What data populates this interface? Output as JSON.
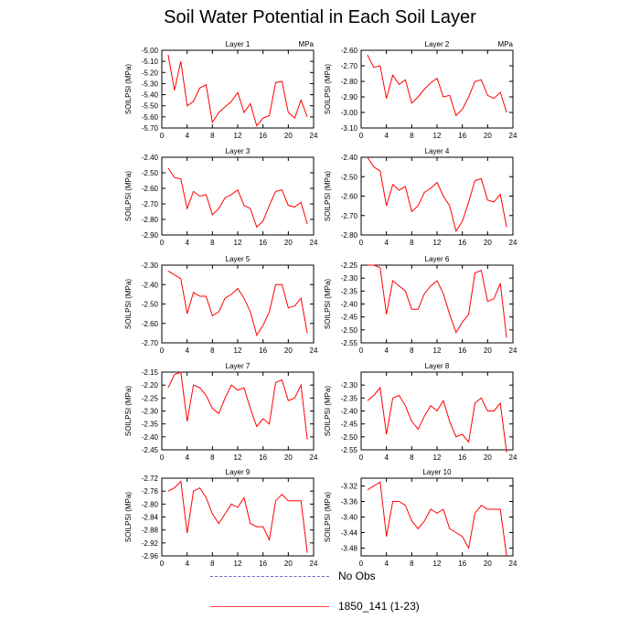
{
  "title": "Soil Water Potential in Each Soil Layer",
  "colors": {
    "model": "#ff0000",
    "obs": "#6666cc"
  },
  "legend": [
    {
      "label": "No Obs",
      "style": "dashed",
      "color": "#6666cc"
    },
    {
      "label": "1850_141 (1-23)",
      "style": "solid",
      "color": "#ff0000"
    }
  ],
  "chart_data": [
    {
      "type": "line",
      "title": "Layer 1",
      "unit_label": "MPa",
      "ylabel": "SOILPSI  (MPa)",
      "x": [
        1,
        2,
        3,
        4,
        5,
        6,
        7,
        8,
        9,
        10,
        11,
        12,
        13,
        14,
        15,
        16,
        17,
        18,
        19,
        20,
        21,
        22,
        23
      ],
      "xlim": [
        0,
        24
      ],
      "xticks": [
        0,
        4,
        8,
        12,
        16,
        20,
        24
      ],
      "ylim": [
        -5.7,
        -5.0
      ],
      "yticks": [
        "-5.00",
        "-5.10",
        "-5.20",
        "-5.30",
        "-5.40",
        "-5.50",
        "-5.60",
        "-5.70"
      ],
      "series": [
        {
          "values": [
            -5.04,
            -5.36,
            -5.1,
            -5.5,
            -5.46,
            -5.34,
            -5.31,
            -5.65,
            -5.56,
            -5.51,
            -5.46,
            -5.38,
            -5.56,
            -5.48,
            -5.68,
            -5.61,
            -5.59,
            -5.29,
            -5.28,
            -5.56,
            -5.61,
            -5.45,
            -5.6
          ]
        }
      ]
    },
    {
      "type": "line",
      "title": "Layer 2",
      "unit_label": "MPa",
      "ylabel": "SOILPSI  (MPa)",
      "x": [
        1,
        2,
        3,
        4,
        5,
        6,
        7,
        8,
        9,
        10,
        11,
        12,
        13,
        14,
        15,
        16,
        17,
        18,
        19,
        20,
        21,
        22,
        23
      ],
      "xlim": [
        0,
        24
      ],
      "xticks": [
        0,
        4,
        8,
        12,
        16,
        20,
        24
      ],
      "ylim": [
        -3.1,
        -2.6
      ],
      "yticks": [
        "-2.60",
        "-2.70",
        "-2.80",
        "-2.90",
        "-3.00",
        "-3.10"
      ],
      "series": [
        {
          "values": [
            -2.63,
            -2.71,
            -2.7,
            -2.91,
            -2.76,
            -2.82,
            -2.79,
            -2.94,
            -2.9,
            -2.85,
            -2.81,
            -2.78,
            -2.9,
            -2.89,
            -3.02,
            -2.98,
            -2.9,
            -2.8,
            -2.79,
            -2.89,
            -2.91,
            -2.87,
            -3.0
          ]
        }
      ]
    },
    {
      "type": "line",
      "title": "Layer 3",
      "unit_label": "",
      "ylabel": "SOILPSI  (MPa)",
      "x": [
        1,
        2,
        3,
        4,
        5,
        6,
        7,
        8,
        9,
        10,
        11,
        12,
        13,
        14,
        15,
        16,
        17,
        18,
        19,
        20,
        21,
        22,
        23
      ],
      "xlim": [
        0,
        24
      ],
      "xticks": [
        0,
        4,
        8,
        12,
        16,
        20,
        24
      ],
      "ylim": [
        -2.9,
        -2.4
      ],
      "yticks": [
        "-2.40",
        "-2.50",
        "-2.60",
        "-2.70",
        "-2.80",
        "-2.90"
      ],
      "series": [
        {
          "values": [
            -2.47,
            -2.53,
            -2.54,
            -2.73,
            -2.62,
            -2.65,
            -2.64,
            -2.77,
            -2.73,
            -2.66,
            -2.64,
            -2.61,
            -2.71,
            -2.73,
            -2.85,
            -2.81,
            -2.71,
            -2.62,
            -2.61,
            -2.71,
            -2.72,
            -2.69,
            -2.83
          ]
        }
      ]
    },
    {
      "type": "line",
      "title": "Layer 4",
      "unit_label": "",
      "ylabel": "SOILPSI  (MPa)",
      "x": [
        1,
        2,
        3,
        4,
        5,
        6,
        7,
        8,
        9,
        10,
        11,
        12,
        13,
        14,
        15,
        16,
        17,
        18,
        19,
        20,
        21,
        22,
        23
      ],
      "xlim": [
        0,
        24
      ],
      "xticks": [
        0,
        4,
        8,
        12,
        16,
        20,
        24
      ],
      "ylim": [
        -2.8,
        -2.4
      ],
      "yticks": [
        "-2.40",
        "-2.50",
        "-2.60",
        "-2.70",
        "-2.80"
      ],
      "series": [
        {
          "values": [
            -2.4,
            -2.45,
            -2.47,
            -2.65,
            -2.54,
            -2.57,
            -2.55,
            -2.68,
            -2.65,
            -2.58,
            -2.56,
            -2.53,
            -2.6,
            -2.65,
            -2.78,
            -2.73,
            -2.63,
            -2.52,
            -2.51,
            -2.62,
            -2.63,
            -2.59,
            -2.76
          ]
        }
      ]
    },
    {
      "type": "line",
      "title": "Layer 5",
      "unit_label": "",
      "ylabel": "SOILPSI  (MPa)",
      "x": [
        1,
        2,
        3,
        4,
        5,
        6,
        7,
        8,
        9,
        10,
        11,
        12,
        13,
        14,
        15,
        16,
        17,
        18,
        19,
        20,
        21,
        22,
        23
      ],
      "xlim": [
        0,
        24
      ],
      "xticks": [
        0,
        4,
        8,
        12,
        16,
        20,
        24
      ],
      "ylim": [
        -2.7,
        -2.3
      ],
      "yticks": [
        "-2.30",
        "-2.40",
        "-2.50",
        "-2.60",
        "-2.70"
      ],
      "series": [
        {
          "values": [
            -2.33,
            -2.35,
            -2.37,
            -2.55,
            -2.44,
            -2.46,
            -2.46,
            -2.56,
            -2.54,
            -2.47,
            -2.45,
            -2.42,
            -2.47,
            -2.54,
            -2.66,
            -2.61,
            -2.54,
            -2.4,
            -2.4,
            -2.52,
            -2.51,
            -2.47,
            -2.65
          ]
        }
      ]
    },
    {
      "type": "line",
      "title": "Layer 6",
      "unit_label": "",
      "ylabel": "SOILPSI  (MPa)",
      "x": [
        1,
        2,
        3,
        4,
        5,
        6,
        7,
        8,
        9,
        10,
        11,
        12,
        13,
        14,
        15,
        16,
        17,
        18,
        19,
        20,
        21,
        22,
        23
      ],
      "xlim": [
        0,
        24
      ],
      "xticks": [
        0,
        4,
        8,
        12,
        16,
        20,
        24
      ],
      "ylim": [
        -2.55,
        -2.25
      ],
      "yticks": [
        "-2.25",
        "-2.30",
        "-2.35",
        "-2.40",
        "-2.45",
        "-2.50",
        "-2.55"
      ],
      "series": [
        {
          "values": [
            -2.25,
            -2.25,
            -2.26,
            -2.44,
            -2.31,
            -2.33,
            -2.35,
            -2.42,
            -2.42,
            -2.36,
            -2.33,
            -2.31,
            -2.36,
            -2.44,
            -2.51,
            -2.47,
            -2.44,
            -2.28,
            -2.27,
            -2.39,
            -2.38,
            -2.32,
            -2.53
          ]
        }
      ]
    },
    {
      "type": "line",
      "title": "Layer 7",
      "unit_label": "",
      "ylabel": "SOILPSI  (MPa)",
      "x": [
        1,
        2,
        3,
        4,
        5,
        6,
        7,
        8,
        9,
        10,
        11,
        12,
        13,
        14,
        15,
        16,
        17,
        18,
        19,
        20,
        21,
        22,
        23
      ],
      "xlim": [
        0,
        24
      ],
      "xticks": [
        0,
        4,
        8,
        12,
        16,
        20,
        24
      ],
      "ylim": [
        -2.45,
        -2.15
      ],
      "yticks": [
        "-2.15",
        "-2.20",
        "-2.25",
        "-2.30",
        "-2.35",
        "-2.40",
        "-2.45"
      ],
      "series": [
        {
          "values": [
            -2.21,
            -2.16,
            -2.15,
            -2.34,
            -2.2,
            -2.21,
            -2.24,
            -2.29,
            -2.31,
            -2.25,
            -2.2,
            -2.22,
            -2.21,
            -2.29,
            -2.36,
            -2.33,
            -2.35,
            -2.19,
            -2.18,
            -2.26,
            -2.25,
            -2.2,
            -2.41
          ]
        }
      ]
    },
    {
      "type": "line",
      "title": "Layer 8",
      "unit_label": "",
      "ylabel": "SOILPSI  (MPa)",
      "x": [
        1,
        2,
        3,
        4,
        5,
        6,
        7,
        8,
        9,
        10,
        11,
        12,
        13,
        14,
        15,
        16,
        17,
        18,
        19,
        20,
        21,
        22,
        23
      ],
      "xlim": [
        0,
        24
      ],
      "xticks": [
        0,
        4,
        8,
        12,
        16,
        20,
        24
      ],
      "ylim": [
        -2.55,
        -2.25
      ],
      "yticks": [
        "-2.30",
        "-2.35",
        "-2.40",
        "-2.45",
        "-2.50",
        "-2.55"
      ],
      "series": [
        {
          "values": [
            -2.36,
            -2.34,
            -2.31,
            -2.49,
            -2.35,
            -2.34,
            -2.38,
            -2.44,
            -2.47,
            -2.42,
            -2.38,
            -2.4,
            -2.36,
            -2.44,
            -2.5,
            -2.49,
            -2.52,
            -2.37,
            -2.35,
            -2.4,
            -2.4,
            -2.37,
            -2.56
          ]
        }
      ]
    },
    {
      "type": "line",
      "title": "Layer 9",
      "unit_label": "",
      "ylabel": "SOILPSI  (MPa)",
      "x": [
        1,
        2,
        3,
        4,
        5,
        6,
        7,
        8,
        9,
        10,
        11,
        12,
        13,
        14,
        15,
        16,
        17,
        18,
        19,
        20,
        21,
        22,
        23
      ],
      "xlim": [
        0,
        24
      ],
      "xticks": [
        0,
        4,
        8,
        12,
        16,
        20,
        24
      ],
      "ylim": [
        -2.96,
        -2.72
      ],
      "yticks": [
        "-2.72",
        "-2.76",
        "-2.80",
        "-2.84",
        "-2.88",
        "-2.92",
        "-2.96"
      ],
      "series": [
        {
          "values": [
            -2.76,
            -2.75,
            -2.73,
            -2.89,
            -2.76,
            -2.75,
            -2.78,
            -2.83,
            -2.86,
            -2.83,
            -2.8,
            -2.81,
            -2.78,
            -2.86,
            -2.87,
            -2.87,
            -2.91,
            -2.79,
            -2.77,
            -2.79,
            -2.79,
            -2.79,
            -2.95
          ]
        }
      ]
    },
    {
      "type": "line",
      "title": "Layer 10",
      "unit_label": "",
      "ylabel": "SOILPSI  (MPa)",
      "x": [
        1,
        2,
        3,
        4,
        5,
        6,
        7,
        8,
        9,
        10,
        11,
        12,
        13,
        14,
        15,
        16,
        17,
        18,
        19,
        20,
        21,
        22,
        23
      ],
      "xlim": [
        0,
        24
      ],
      "xticks": [
        0,
        4,
        8,
        12,
        16,
        20,
        24
      ],
      "ylim": [
        -3.5,
        -3.3
      ],
      "yticks": [
        "-3.32",
        "-3.36",
        "-3.40",
        "-3.44",
        "-3.48"
      ],
      "series": [
        {
          "values": [
            -3.33,
            -3.32,
            -3.31,
            -3.45,
            -3.36,
            -3.36,
            -3.37,
            -3.41,
            -3.43,
            -3.41,
            -3.38,
            -3.39,
            -3.38,
            -3.43,
            -3.44,
            -3.45,
            -3.48,
            -3.39,
            -3.37,
            -3.38,
            -3.38,
            -3.38,
            -3.5
          ]
        }
      ]
    }
  ]
}
